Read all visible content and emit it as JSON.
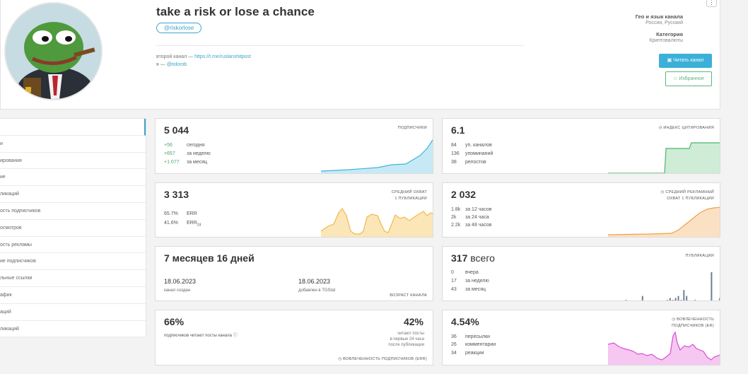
{
  "channel": {
    "title": "take a risk or lose a chance",
    "username": "@riskorlose",
    "desc_line1_prefix": "второй канал — ",
    "desc_line1_link": "https://t.me/ruslanshitpost",
    "desc_line2_prefix": "я — ",
    "desc_line2_link": "@tolorob",
    "menu": "⋮"
  },
  "meta": {
    "geo_label": "Гео и язык канала",
    "geo_value": "Россия, Русский",
    "category_label": "Категория",
    "category_value": "Криптовалюты",
    "read_button": "Читать канал",
    "fav_button": "Избранное"
  },
  "sidebar": {
    "items": [
      {
        "label": ""
      },
      {
        "label": "и"
      },
      {
        "label": "ирования"
      },
      {
        "label": "ие"
      },
      {
        "label": "ликаций"
      },
      {
        "label": "ость подписчиков"
      },
      {
        "label": "осмотров"
      },
      {
        "label": "ость рекламы"
      },
      {
        "label": "ие подписчиков"
      },
      {
        "label": "льные ссылки"
      },
      {
        "label": "афик"
      },
      {
        "label": "аций"
      },
      {
        "label": "ликаций"
      }
    ]
  },
  "subscribers": {
    "value": "5 044",
    "label": "ПОДПИСЧИКИ",
    "rows": [
      {
        "num": "+56",
        "text": "сегодня"
      },
      {
        "num": "+657",
        "text": "за неделю"
      },
      {
        "num": "+1 077",
        "text": "за месяц"
      }
    ],
    "color": "#3fb4dd"
  },
  "citation": {
    "value": "6.1",
    "label": "ИНДЕКС ЦИТИРОВАНИЯ",
    "rows": [
      {
        "num": "84",
        "text": "уп. каналов"
      },
      {
        "num": "136",
        "text": "упоминаний"
      },
      {
        "num": "38",
        "text": "репостов"
      }
    ],
    "color": "#49b86b"
  },
  "reach": {
    "value": "3 313",
    "label_l1": "СРЕДНИЙ ОХВАТ",
    "label_l2": "1 ПУБЛИКАЦИИ",
    "err": "65.7%",
    "err_label": "ERR",
    "err24": "41.6%",
    "err24_label": "ERR",
    "err24_sub": "24",
    "color": "#f2b84b"
  },
  "ad_reach": {
    "value": "2 032",
    "label_l1": "СРЕДНИЙ РЕКЛАМНЫЙ",
    "label_l2": "ОХВАТ 1 ПУБЛИКАЦИИ",
    "rows": [
      {
        "num": "1.8k",
        "text": "за 12 часов"
      },
      {
        "num": "2k",
        "text": "за 24 часа"
      },
      {
        "num": "2.2k",
        "text": "за 48 часов"
      }
    ],
    "color": "#f0a04b"
  },
  "age": {
    "value": "7 месяцев 16 дней",
    "created_date": "18.06.2023",
    "created_label": "канал создан",
    "added_date": "18.06.2023",
    "added_label": "добавлен в TGStat",
    "label": "ВОЗРАСТ КАНАЛА"
  },
  "posts": {
    "value": "317",
    "value_suffix": "всего",
    "label": "ПУБЛИКАЦИИ",
    "rows": [
      {
        "num": "0",
        "text": "вчера"
      },
      {
        "num": "17",
        "text": "за неделю"
      },
      {
        "num": "43",
        "text": "за месяц"
      }
    ],
    "bars": [
      0,
      0,
      0,
      0,
      0,
      0,
      1,
      0,
      0,
      0,
      0,
      0,
      3,
      0,
      0,
      0,
      0,
      0,
      0,
      0,
      0,
      1,
      2,
      1,
      2,
      3,
      1,
      6,
      3,
      0,
      0,
      1,
      0,
      0,
      0,
      0,
      0,
      15,
      0,
      0,
      2
    ],
    "color": "#6f7f93"
  },
  "readers": {
    "percent": "66%",
    "percent_label": "подписчиков читают посты канала",
    "percent24": "42%",
    "percent24_l1": "читают посты",
    "percent24_l2": "в первые 24 часа",
    "percent24_l3": "после публикации",
    "footer": "ВОВЛЕЧЕННОСТЬ ПОДПИСЧИКОВ (ERR)"
  },
  "engagement": {
    "value": "4.54%",
    "label_l1": "ВОВЛЕЧЕННОСТЬ",
    "label_l2": "ПОДПИСЧИКОВ (ER)",
    "rows": [
      {
        "num": "36",
        "text": "пересылки"
      },
      {
        "num": "26",
        "text": "комментарии"
      },
      {
        "num": "34",
        "text": "реакции"
      }
    ],
    "color": "#d94fd3"
  }
}
